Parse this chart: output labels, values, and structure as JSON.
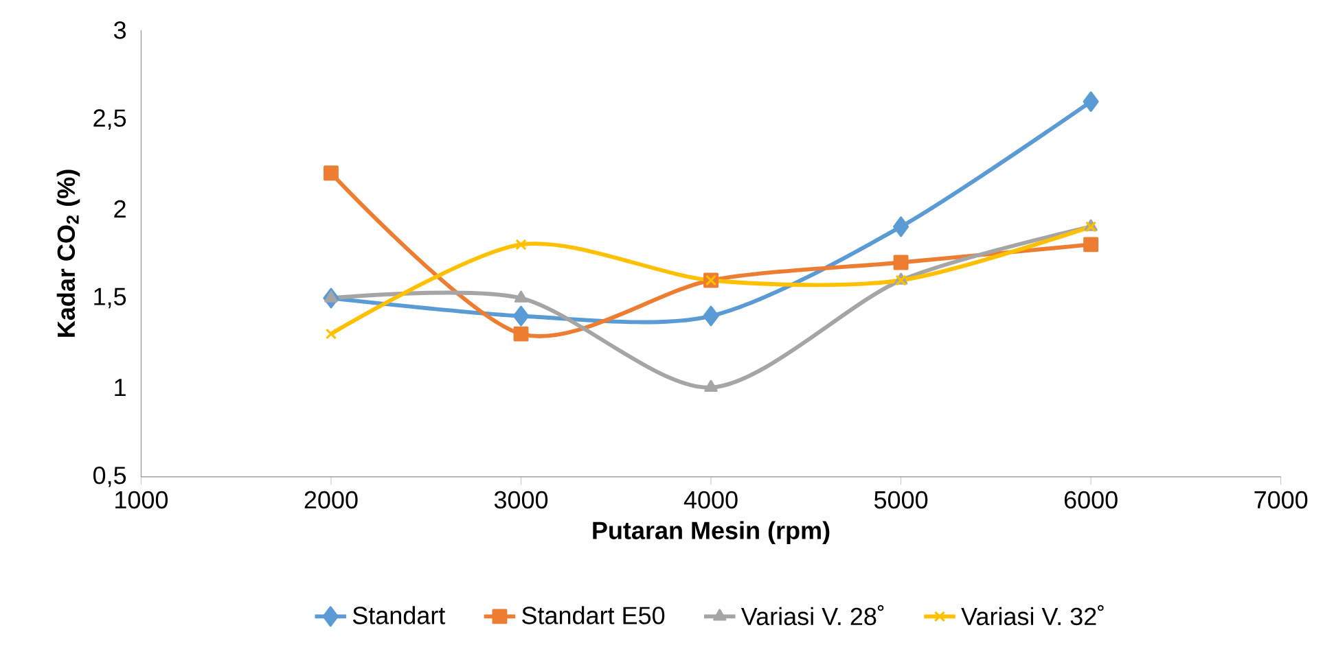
{
  "chart_data": {
    "type": "line",
    "xlabel": "Putaran Mesin (rpm)",
    "ylabel": "Kadar CO$_{2}$ (%)",
    "x": [
      2000,
      3000,
      4000,
      5000,
      6000
    ],
    "series": [
      {
        "name": "Standart",
        "color": "#5b9bd5",
        "marker": "diamond",
        "values": [
          1.5,
          1.4,
          1.4,
          1.9,
          2.6
        ]
      },
      {
        "name": "Standart E50",
        "color": "#ed7d31",
        "marker": "square",
        "values": [
          2.2,
          1.3,
          1.6,
          1.7,
          1.8
        ]
      },
      {
        "name": "Variasi V. 28˚",
        "color": "#a5a5a5",
        "marker": "triangle",
        "values": [
          1.5,
          1.5,
          1.0,
          1.6,
          1.9
        ]
      },
      {
        "name": "Variasi V. 32˚",
        "color": "#ffc000",
        "marker": "cross",
        "values": [
          1.3,
          1.8,
          1.6,
          1.6,
          1.9
        ]
      }
    ],
    "xlim": [
      1000,
      7000
    ],
    "xticks": [
      1000,
      2000,
      3000,
      4000,
      5000,
      6000,
      7000
    ],
    "ylim": [
      0.5,
      3
    ],
    "yticks": [
      {
        "value": 0.5,
        "label": "0,5"
      },
      1,
      {
        "value": 1.5,
        "label": "1,5"
      },
      2,
      {
        "value": 2.5,
        "label": "2,5"
      },
      3
    ],
    "grid": false,
    "legend": "bottom",
    "line_style": "solid"
  }
}
